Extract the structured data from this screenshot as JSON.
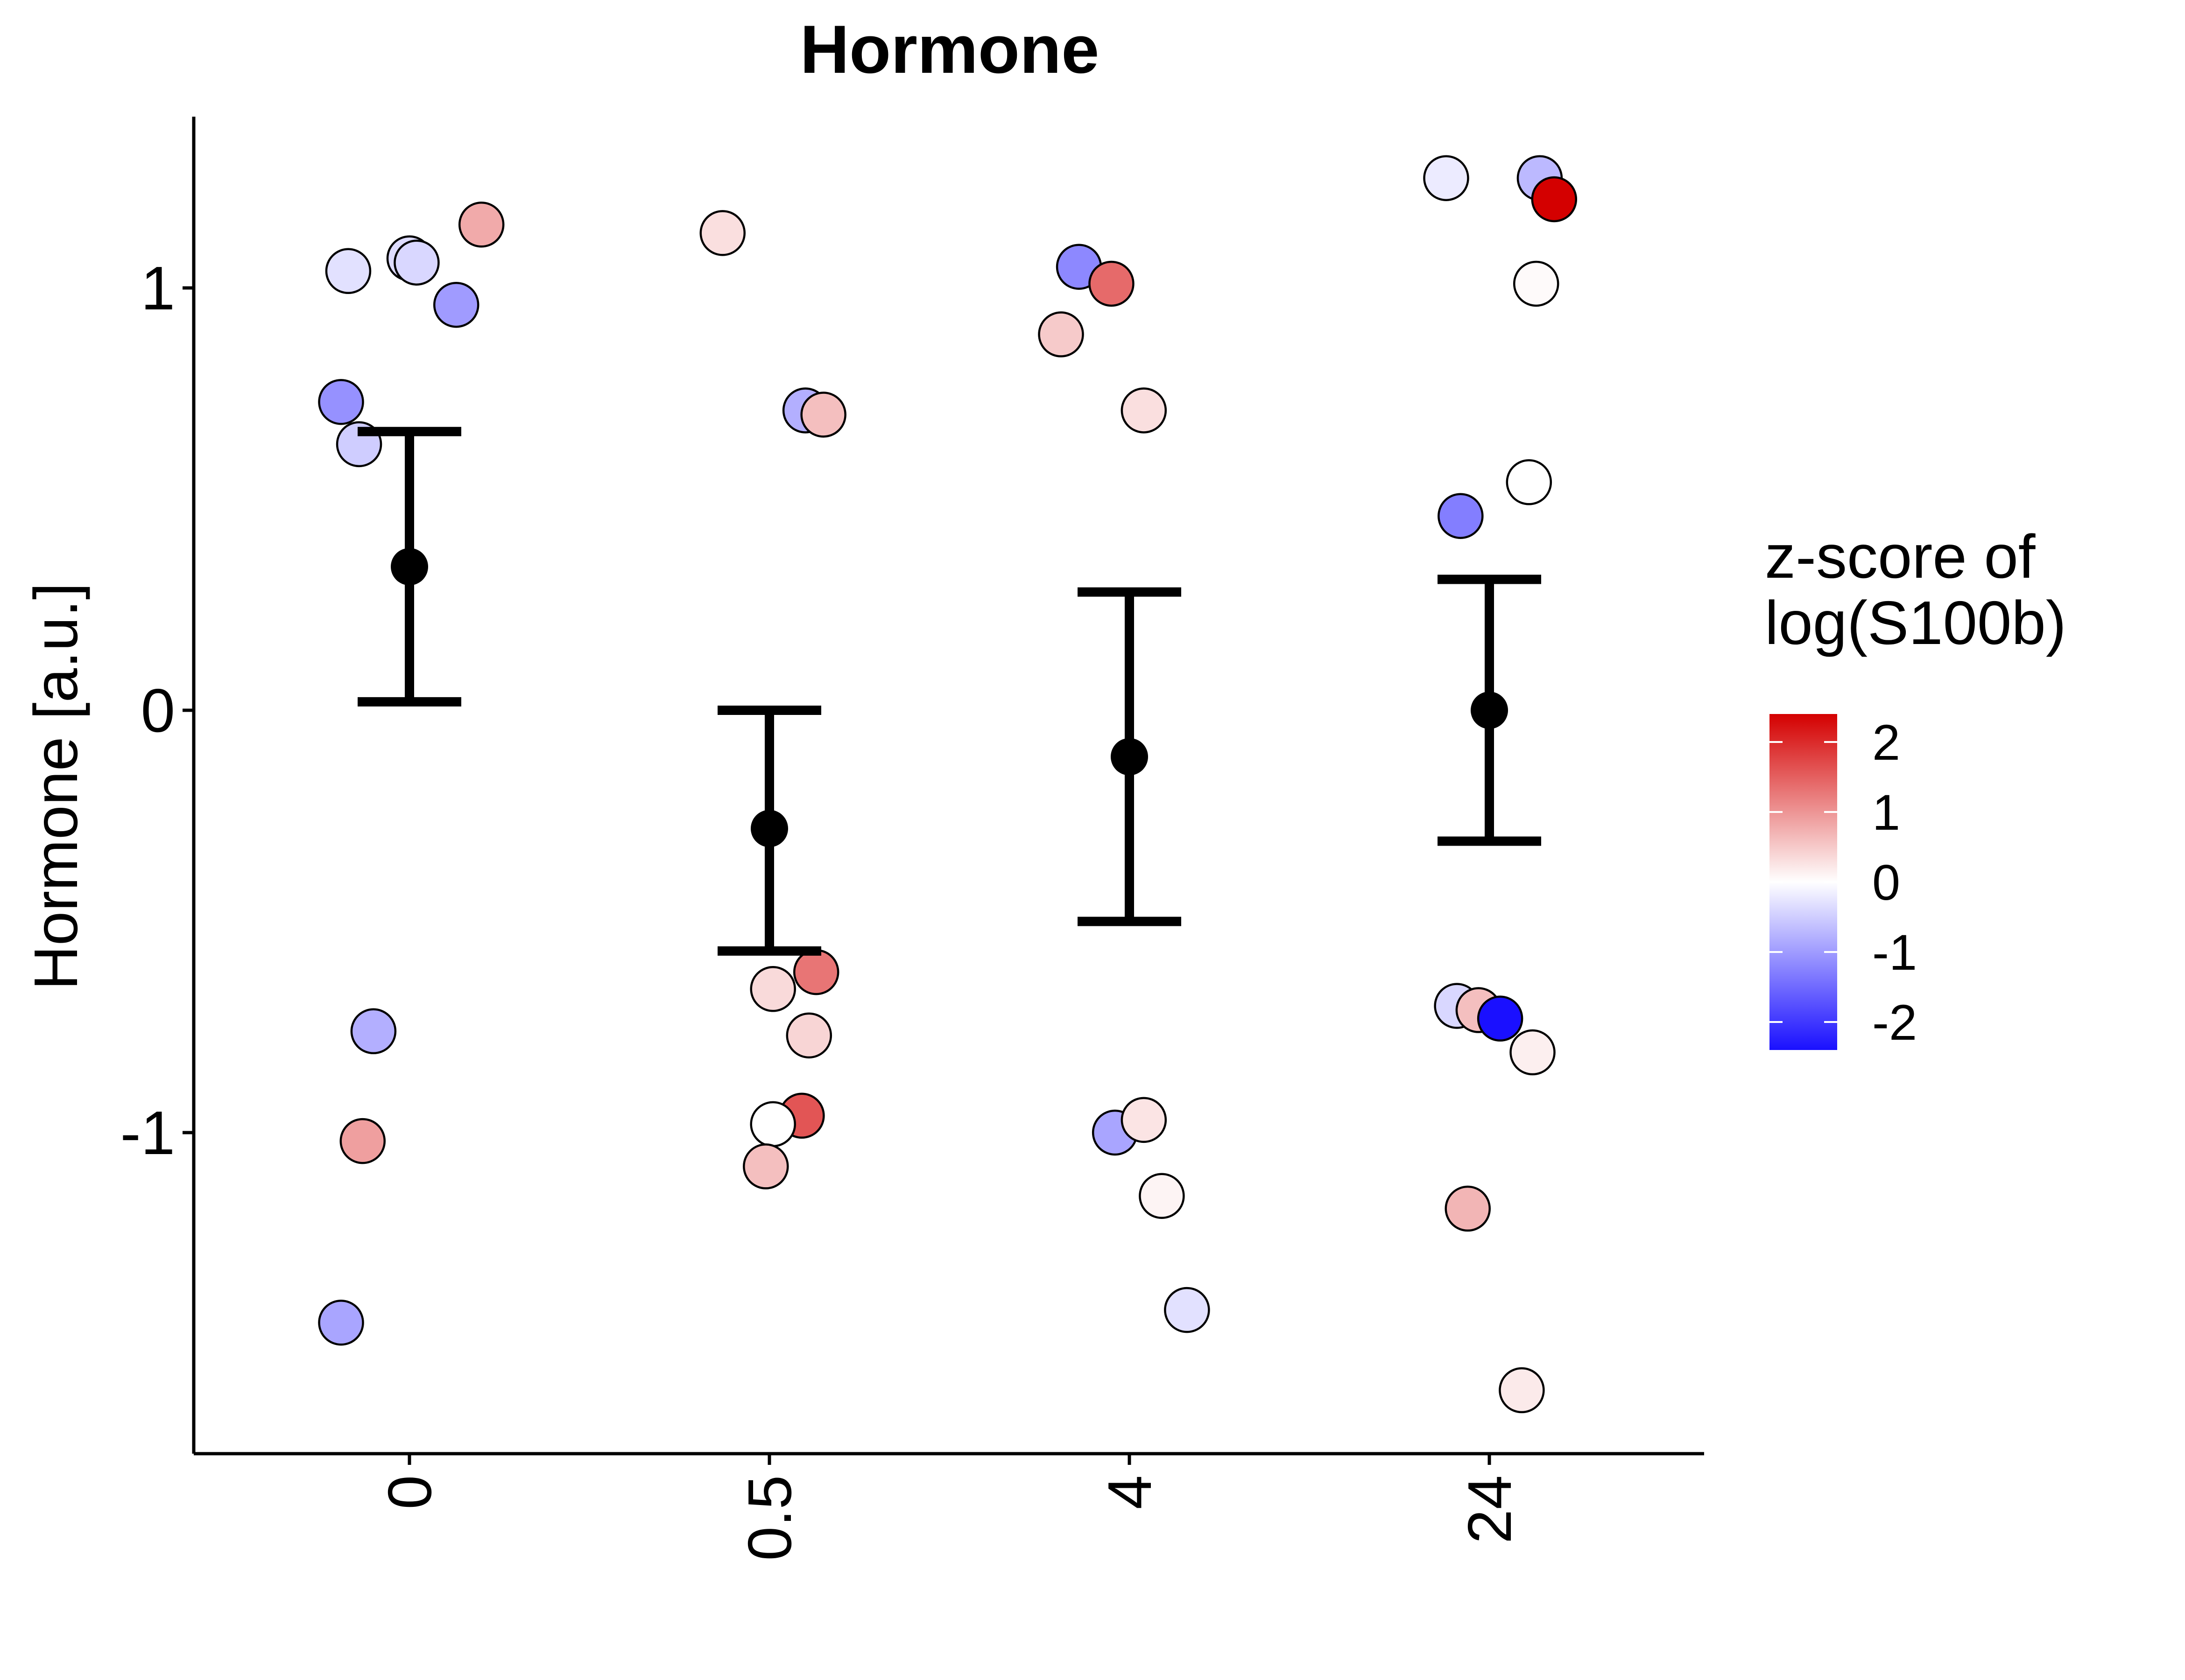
{
  "chart_data": {
    "type": "scatter",
    "title": "Hormone",
    "xlabel": "",
    "ylabel": "Hormone [a.u.]",
    "categories": [
      "0",
      "0.5",
      "4",
      "24"
    ],
    "ylim": [
      -1.75,
      1.4
    ],
    "yticks": [
      -1,
      0,
      1
    ],
    "ytick_labels": [
      "-1",
      "0",
      "1"
    ],
    "xtick_rotation": "vertical",
    "grid": false,
    "colorbar": {
      "title_lines": [
        "z-score of",
        "log(S100b)"
      ],
      "range": [
        -2.4,
        2.4
      ],
      "ticks": [
        2,
        1,
        0,
        -1,
        -2
      ],
      "tick_labels": [
        "2",
        "1",
        "0",
        "-1",
        "-2"
      ],
      "colors": {
        "low": "#1a10ff",
        "mid": "#ffffff",
        "high": "#d40000"
      },
      "placement": "right"
    },
    "points": [
      {
        "category": "0",
        "jitter": -0.17,
        "y": 1.04,
        "z": -0.3
      },
      {
        "category": "0",
        "jitter": 0.0,
        "y": 1.07,
        "z": -0.35
      },
      {
        "category": "0",
        "jitter": 0.02,
        "y": 1.06,
        "z": -0.4
      },
      {
        "category": "0",
        "jitter": 0.2,
        "y": 1.15,
        "z": 0.8
      },
      {
        "category": "0",
        "jitter": 0.13,
        "y": 0.96,
        "z": -1.0
      },
      {
        "category": "0",
        "jitter": -0.19,
        "y": 0.73,
        "z": -1.1
      },
      {
        "category": "0",
        "jitter": -0.14,
        "y": 0.63,
        "z": -0.5
      },
      {
        "category": "0",
        "jitter": -0.1,
        "y": -0.76,
        "z": -0.8
      },
      {
        "category": "0",
        "jitter": -0.13,
        "y": -1.02,
        "z": 0.9
      },
      {
        "category": "0",
        "jitter": -0.19,
        "y": -1.45,
        "z": -0.9
      },
      {
        "category": "0.5",
        "jitter": -0.13,
        "y": 1.13,
        "z": 0.3
      },
      {
        "category": "0.5",
        "jitter": 0.1,
        "y": 0.71,
        "z": -0.8
      },
      {
        "category": "0.5",
        "jitter": 0.15,
        "y": 0.7,
        "z": 0.6
      },
      {
        "category": "0.5",
        "jitter": 0.13,
        "y": -0.62,
        "z": 1.3
      },
      {
        "category": "0.5",
        "jitter": 0.01,
        "y": -0.66,
        "z": 0.35
      },
      {
        "category": "0.5",
        "jitter": 0.11,
        "y": -0.77,
        "z": 0.4
      },
      {
        "category": "0.5",
        "jitter": 0.09,
        "y": -0.96,
        "z": 1.6
      },
      {
        "category": "0.5",
        "jitter": 0.01,
        "y": -0.98,
        "z": 0.0
      },
      {
        "category": "0.5",
        "jitter": -0.01,
        "y": -1.08,
        "z": 0.6
      },
      {
        "category": "4",
        "jitter": -0.14,
        "y": 1.05,
        "z": -1.2
      },
      {
        "category": "4",
        "jitter": -0.05,
        "y": 1.01,
        "z": 1.4
      },
      {
        "category": "4",
        "jitter": -0.19,
        "y": 0.89,
        "z": 0.5
      },
      {
        "category": "4",
        "jitter": 0.04,
        "y": 0.71,
        "z": 0.3
      },
      {
        "category": "4",
        "jitter": -0.04,
        "y": -1.0,
        "z": -0.9
      },
      {
        "category": "4",
        "jitter": 0.04,
        "y": -0.97,
        "z": 0.25
      },
      {
        "category": "4",
        "jitter": 0.09,
        "y": -1.15,
        "z": 0.1
      },
      {
        "category": "4",
        "jitter": 0.16,
        "y": -1.42,
        "z": -0.3
      },
      {
        "category": "24",
        "jitter": -0.12,
        "y": 1.26,
        "z": -0.2
      },
      {
        "category": "24",
        "jitter": 0.14,
        "y": 1.26,
        "z": -0.7
      },
      {
        "category": "24",
        "jitter": 0.18,
        "y": 1.21,
        "z": 2.4
      },
      {
        "category": "24",
        "jitter": 0.13,
        "y": 1.01,
        "z": 0.05
      },
      {
        "category": "24",
        "jitter": 0.11,
        "y": 0.54,
        "z": 0.0
      },
      {
        "category": "24",
        "jitter": -0.08,
        "y": 0.46,
        "z": -1.3
      },
      {
        "category": "24",
        "jitter": -0.09,
        "y": -0.7,
        "z": -0.4
      },
      {
        "category": "24",
        "jitter": -0.03,
        "y": -0.71,
        "z": 0.6
      },
      {
        "category": "24",
        "jitter": 0.03,
        "y": -0.73,
        "z": -2.4
      },
      {
        "category": "24",
        "jitter": 0.12,
        "y": -0.81,
        "z": 0.15
      },
      {
        "category": "24",
        "jitter": -0.06,
        "y": -1.18,
        "z": 0.7
      },
      {
        "category": "24",
        "jitter": 0.09,
        "y": -1.61,
        "z": 0.2
      }
    ],
    "summary": [
      {
        "category": "0",
        "mean": 0.34,
        "lower": 0.02,
        "upper": 0.66
      },
      {
        "category": "0.5",
        "mean": -0.28,
        "lower": -0.57,
        "upper": 0.0
      },
      {
        "category": "4",
        "mean": -0.11,
        "lower": -0.5,
        "upper": 0.28
      },
      {
        "category": "24",
        "mean": 0.0,
        "lower": -0.31,
        "upper": 0.31
      }
    ]
  }
}
